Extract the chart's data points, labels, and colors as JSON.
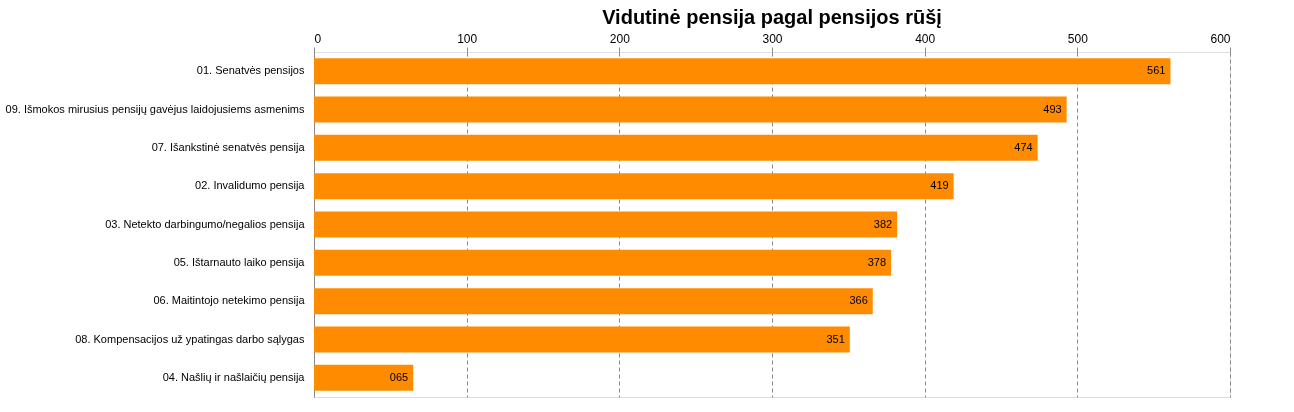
{
  "chart_data": {
    "type": "bar",
    "orientation": "horizontal",
    "title": "Vidutinė pensija pagal pensijos rūšį",
    "categories": [
      "01. Senatvės pensijos",
      "09. Išmokos mirusius pensijų gavėjus laidojusiems asmenims",
      "07. Išankstinė senatvės pensija",
      "02. Invalidumo pensija",
      "03. Netekto darbingumo/negalios pensija",
      "05. Ištarnauto laiko pensija",
      "06. Maitintojo netekimo pensija",
      "08. Kompensacijos už ypatingas darbo sąlygas",
      "04. Našlių ir našlaičių pensija"
    ],
    "values": [
      561,
      493,
      474,
      419,
      382,
      378,
      366,
      351,
      65
    ],
    "value_labels": [
      "561",
      "493",
      "474",
      "419",
      "382",
      "378",
      "366",
      "351",
      "065"
    ],
    "color": "#ff8c00",
    "xlim": [
      0,
      600
    ],
    "xticks": [
      0,
      100,
      200,
      300,
      400,
      500,
      600
    ],
    "grid": "x"
  }
}
